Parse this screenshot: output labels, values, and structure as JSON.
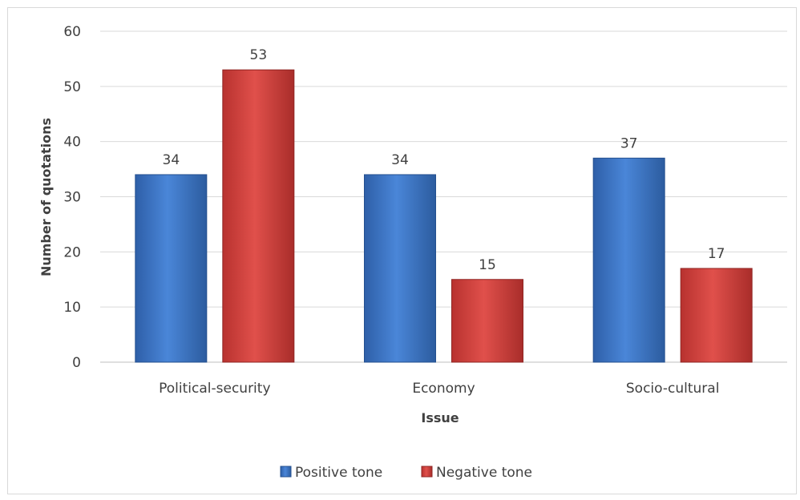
{
  "chart_data": {
    "type": "bar",
    "title": "",
    "xlabel": "Issue",
    "ylabel": "Number of quotations",
    "categories": [
      "Political-security",
      "Economy",
      "Socio-cultural"
    ],
    "ylim": [
      0,
      60
    ],
    "yticks": [
      0,
      10,
      20,
      30,
      40,
      50,
      60
    ],
    "grid": true,
    "legend_position": "bottom",
    "series": [
      {
        "name": "Positive tone",
        "values": [
          34,
          34,
          37
        ],
        "color": "#3A73C4"
      },
      {
        "name": "Negative tone",
        "values": [
          53,
          15,
          17
        ],
        "color": "#D1403C"
      }
    ]
  }
}
